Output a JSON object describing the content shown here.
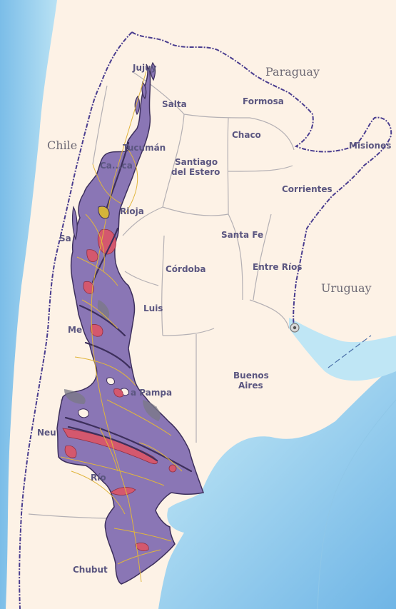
{
  "map": {
    "countries": [
      {
        "id": "chile",
        "label": "Chile"
      },
      {
        "id": "paraguay",
        "label": "Paraguay"
      },
      {
        "id": "uruguay",
        "label": "Uruguay"
      }
    ],
    "provinces": [
      {
        "id": "jujuy",
        "label": "Jujuy"
      },
      {
        "id": "salta",
        "label": "Salta"
      },
      {
        "id": "formosa",
        "label": "Formosa"
      },
      {
        "id": "chaco",
        "label": "Chaco"
      },
      {
        "id": "misiones",
        "label": "Misiones"
      },
      {
        "id": "tucuman",
        "label": "Tucumán"
      },
      {
        "id": "catamarca",
        "label": "Ca...ca"
      },
      {
        "id": "santiago-estero-1",
        "label": "Santiago"
      },
      {
        "id": "santiago-estero-2",
        "label": "del Estero"
      },
      {
        "id": "corrientes",
        "label": "Corrientes"
      },
      {
        "id": "la-rioja",
        "label": "Rioja"
      },
      {
        "id": "san-juan",
        "label": "Sa"
      },
      {
        "id": "santa-fe",
        "label": "Santa Fe"
      },
      {
        "id": "cordoba",
        "label": "Córdoba"
      },
      {
        "id": "entre-rios",
        "label": "Entre Ríos"
      },
      {
        "id": "san-luis",
        "label": "Luis"
      },
      {
        "id": "mendoza",
        "label": "Me"
      },
      {
        "id": "buenos-aires-1",
        "label": "Buenos"
      },
      {
        "id": "buenos-aires-2",
        "label": "Aires"
      },
      {
        "id": "la-pampa",
        "label": "a Pampa"
      },
      {
        "id": "neuquen",
        "label": "Neu"
      },
      {
        "id": "rio-negro",
        "label": "Río"
      },
      {
        "id": "chubut",
        "label": "Chubut"
      }
    ],
    "colors": {
      "land": "#fdf2e6",
      "sea": "#a8d8f0",
      "sea_deep": "#6fb5e6",
      "overlay": "#8a76b5",
      "overlay_stroke": "#3d2f5c",
      "hotspot": "#d4586e",
      "roads": "#e0b53c",
      "border_country": "#4a3d8f",
      "border_province": "#a8a8a8",
      "labels": "#5b5680"
    }
  }
}
